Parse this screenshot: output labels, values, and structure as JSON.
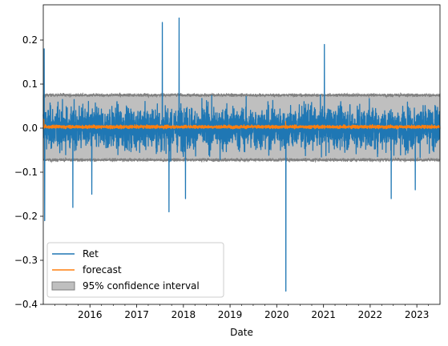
{
  "chart_data": {
    "type": "line",
    "title": "",
    "xlabel": "Date",
    "ylabel": "",
    "x_range": [
      "2015-01-01",
      "2023-07-01"
    ],
    "ylim": [
      -0.4,
      0.28
    ],
    "x_ticks": [
      "2016",
      "2017",
      "2018",
      "2019",
      "2020",
      "2021",
      "2022",
      "2023"
    ],
    "y_ticks": [
      -0.4,
      -0.3,
      -0.2,
      -0.1,
      0.0,
      0.1,
      0.2
    ],
    "y_tick_labels": [
      "−0.4",
      "−0.3",
      "−0.2",
      "−0.1",
      "0.0",
      "0.1",
      "0.2"
    ],
    "legend_position": "lower-left",
    "grid": false,
    "series": [
      {
        "name": "Ret",
        "kind": "line",
        "color": "#1f77b4",
        "typical_abs": 0.05,
        "extremes": [
          {
            "date": "2015-01-08",
            "value": 0.18
          },
          {
            "date": "2015-01-12",
            "value": -0.21
          },
          {
            "date": "2015-08-20",
            "value": -0.18
          },
          {
            "date": "2016-01-15",
            "value": -0.15
          },
          {
            "date": "2017-07-20",
            "value": 0.24
          },
          {
            "date": "2017-09-10",
            "value": -0.19
          },
          {
            "date": "2017-11-28",
            "value": 0.25
          },
          {
            "date": "2018-01-17",
            "value": -0.16
          },
          {
            "date": "2020-03-12",
            "value": -0.37
          },
          {
            "date": "2021-01-08",
            "value": 0.19
          },
          {
            "date": "2022-06-15",
            "value": -0.16
          },
          {
            "date": "2022-12-20",
            "value": -0.14
          }
        ]
      },
      {
        "name": "forecast",
        "kind": "line",
        "color": "#ff7f0e",
        "center": 0.003,
        "typical_abs": 0.006,
        "extremes": [
          {
            "date": "2015-01-05",
            "value": 0.02
          },
          {
            "date": "2020-03-10",
            "value": 0.015
          }
        ]
      },
      {
        "name": "95% confidence interval",
        "kind": "band",
        "color": "#bfbfbf",
        "edge_color": "#7f7f7f",
        "upper": 0.075,
        "lower": -0.072
      }
    ]
  }
}
